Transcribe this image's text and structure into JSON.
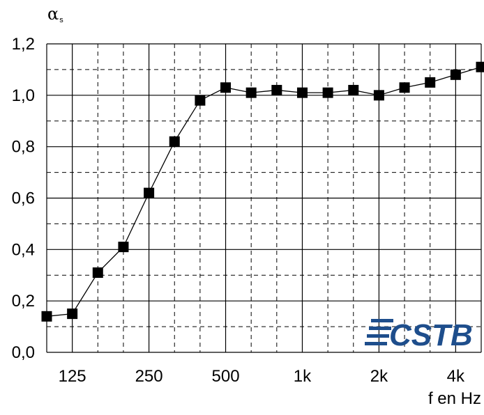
{
  "chart_data": {
    "type": "line",
    "ylabel": "α",
    "ylabel_subscript": "s",
    "xlabel": "f en Hz",
    "x": [
      100,
      125,
      160,
      200,
      250,
      315,
      400,
      500,
      630,
      800,
      1000,
      1250,
      1600,
      2000,
      2500,
      3150,
      4000,
      5000
    ],
    "y": [
      0.14,
      0.15,
      0.31,
      0.41,
      0.62,
      0.82,
      0.98,
      1.03,
      1.01,
      1.02,
      1.01,
      1.01,
      1.02,
      1.0,
      1.03,
      1.05,
      1.08,
      1.11
    ],
    "x_ticks": [
      {
        "value": 125,
        "label": "125"
      },
      {
        "value": 250,
        "label": "250"
      },
      {
        "value": 500,
        "label": "500"
      },
      {
        "value": 1000,
        "label": "1k"
      },
      {
        "value": 2000,
        "label": "2k"
      },
      {
        "value": 4000,
        "label": "4k"
      }
    ],
    "y_ticks": [
      {
        "value": 0.0,
        "label": "0,0"
      },
      {
        "value": 0.2,
        "label": "0,2"
      },
      {
        "value": 0.4,
        "label": "0,4"
      },
      {
        "value": 0.6,
        "label": "0,6"
      },
      {
        "value": 0.8,
        "label": "0,8"
      },
      {
        "value": 1.0,
        "label": "1,0"
      },
      {
        "value": 1.2,
        "label": "1,2"
      }
    ],
    "x_scale": "log (third-octave bands)",
    "ylim": [
      0,
      1.2
    ],
    "grid": true,
    "marker": "square",
    "line_color": "#000000"
  },
  "logo": {
    "text": "CSTB",
    "color": "#1e4e8c"
  }
}
